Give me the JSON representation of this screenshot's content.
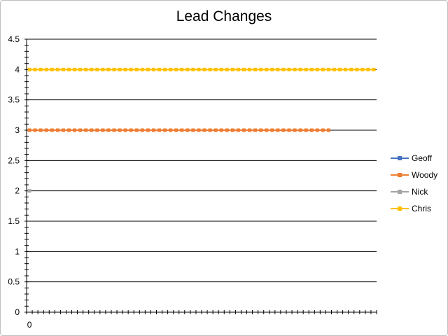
{
  "chart_data": {
    "type": "line",
    "title": "Lead Changes",
    "xlabel": "",
    "ylabel": "",
    "ylim": [
      0,
      4.5
    ],
    "yticks": [
      0,
      0.5,
      1,
      1.5,
      2,
      2.5,
      3,
      3.5,
      4,
      4.5
    ],
    "ytick_labels": [
      "0",
      "0.5",
      "1",
      "1.5",
      "2",
      "2.5",
      "3",
      "3.5",
      "4",
      "4.5"
    ],
    "x_category_count": 62,
    "x_tick_labels": [
      "0"
    ],
    "grid": true,
    "legend_position": "right",
    "series": [
      {
        "name": "Geoff",
        "color": "#4472c4",
        "values": []
      },
      {
        "name": "Woody",
        "color": "#ed7d31",
        "values": [
          3,
          3,
          3,
          3,
          3,
          3,
          3,
          3,
          3,
          3,
          3,
          3,
          3,
          3,
          3,
          3,
          3,
          3,
          3,
          3,
          3,
          3,
          3,
          3,
          3,
          3,
          3,
          3,
          3,
          3,
          3,
          3,
          3,
          3,
          3,
          3,
          3,
          3,
          3,
          3,
          3,
          3,
          3,
          3,
          3,
          3,
          3,
          3,
          3,
          3,
          3,
          3,
          3,
          3
        ]
      },
      {
        "name": "Nick",
        "color": "#a5a5a5",
        "values": [
          2
        ]
      },
      {
        "name": "Chris",
        "color": "#ffc000",
        "values": [
          4,
          4,
          4,
          4,
          4,
          4,
          4,
          4,
          4,
          4,
          4,
          4,
          4,
          4,
          4,
          4,
          4,
          4,
          4,
          4,
          4,
          4,
          4,
          4,
          4,
          4,
          4,
          4,
          4,
          4,
          4,
          4,
          4,
          4,
          4,
          4,
          4,
          4,
          4,
          4,
          4,
          4,
          4,
          4,
          4,
          4,
          4,
          4,
          4,
          4,
          4,
          4,
          4,
          4,
          4,
          4,
          4,
          4,
          4,
          4,
          4,
          4
        ]
      }
    ]
  }
}
